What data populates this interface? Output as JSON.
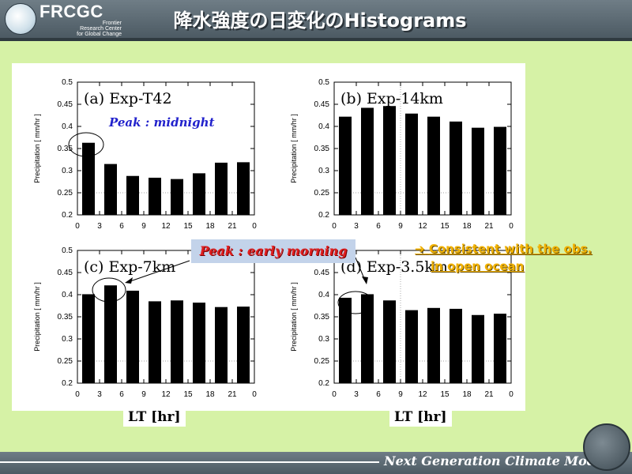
{
  "header": {
    "logo_text": "FRCGC",
    "logo_sub": [
      "Frontier",
      "Research Center",
      "for Global Change"
    ],
    "title": "降水強度の日変化のHistograms"
  },
  "chart_data": [
    {
      "type": "bar",
      "title": "(a) Exp-T42",
      "ylabel": "Precipitation [ mm/hr ]",
      "xlabel": "LT [hr]",
      "categories": [
        1.5,
        4.5,
        7.5,
        10.5,
        13.5,
        16.5,
        19.5,
        22.5
      ],
      "values": [
        0.363,
        0.315,
        0.288,
        0.284,
        0.281,
        0.294,
        0.318,
        0.319
      ],
      "ylim": [
        0.2,
        0.5
      ],
      "xlim": [
        0,
        24
      ],
      "xticks": [
        "0",
        "3",
        "6",
        "9",
        "12",
        "15",
        "18",
        "21",
        "0"
      ],
      "yticks": [
        "0.2",
        "0.25",
        "0.3",
        "0.35",
        "0.4",
        "0.45",
        "0.5"
      ]
    },
    {
      "type": "bar",
      "title": "(b) Exp-14km",
      "ylabel": "Precipitation [ mm/hr ]",
      "xlabel": "LT [hr]",
      "categories": [
        1.5,
        4.5,
        7.5,
        10.5,
        13.5,
        16.5,
        19.5,
        22.5
      ],
      "values": [
        0.422,
        0.442,
        0.446,
        0.429,
        0.422,
        0.411,
        0.397,
        0.399
      ],
      "ylim": [
        0.2,
        0.5
      ],
      "xlim": [
        0,
        24
      ],
      "xticks": [
        "0",
        "3",
        "6",
        "9",
        "12",
        "15",
        "18",
        "21",
        "0"
      ],
      "yticks": [
        "0.2",
        "0.25",
        "0.3",
        "0.35",
        "0.4",
        "0.45",
        "0.5"
      ]
    },
    {
      "type": "bar",
      "title": "(c) Exp-7km",
      "ylabel": "Precipitation [ mm/hr ]",
      "xlabel": "LT [hr]",
      "categories": [
        1.5,
        4.5,
        7.5,
        10.5,
        13.5,
        16.5,
        19.5,
        22.5
      ],
      "values": [
        0.401,
        0.421,
        0.409,
        0.385,
        0.387,
        0.382,
        0.372,
        0.373
      ],
      "ylim": [
        0.2,
        0.5
      ],
      "xlim": [
        0,
        24
      ],
      "xticks": [
        "0",
        "3",
        "6",
        "9",
        "12",
        "15",
        "18",
        "21",
        "0"
      ],
      "yticks": [
        "0.2",
        "0.25",
        "0.3",
        "0.35",
        "0.4",
        "0.45",
        "0.5"
      ]
    },
    {
      "type": "bar",
      "title": "(d) Exp-3.5km",
      "ylabel": "Precipitation [ mm/hr ]",
      "xlabel": "LT [hr]",
      "categories": [
        1.5,
        4.5,
        7.5,
        10.5,
        13.5,
        16.5,
        19.5,
        22.5
      ],
      "values": [
        0.393,
        0.401,
        0.387,
        0.365,
        0.37,
        0.368,
        0.354,
        0.357
      ],
      "ylim": [
        0.2,
        0.5
      ],
      "xlim": [
        0,
        24
      ],
      "xticks": [
        "0",
        "3",
        "6",
        "9",
        "12",
        "15",
        "18",
        "21",
        "0"
      ],
      "yticks": [
        "0.2",
        "0.25",
        "0.3",
        "0.35",
        "0.4",
        "0.45",
        "0.5"
      ]
    }
  ],
  "annotations": {
    "peak_midnight": "Peak : midnight",
    "peak_morning": "Peak : early morning",
    "lt_left": "LT [hr]",
    "lt_right": "LT [hr]",
    "consistent_line1": "Consistent with the obs.",
    "consistent_line2": "in open ocean",
    "arrow": "➔"
  },
  "footer": {
    "text": "Next Generation Climate Model"
  },
  "colors": {
    "background": "#d6f2a6",
    "header": "#5b6a73",
    "bars": "#000000",
    "peak_midnight": "#2222cc",
    "peak_morning": "#e01e1e",
    "consistent": "#f2b200"
  }
}
